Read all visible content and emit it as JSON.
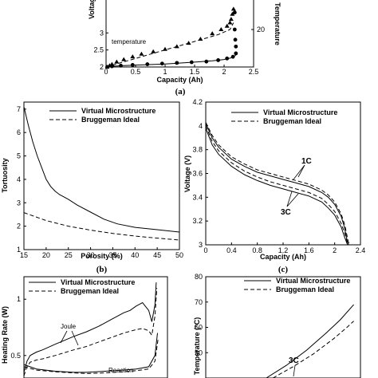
{
  "chart_data": [
    {
      "id": "a",
      "type": "line",
      "caption": "(a)",
      "xlabel": "Capacity (Ah)",
      "ylabel": "Voltage",
      "y2label": "Temperature",
      "xlim": [
        0,
        2.5
      ],
      "ylim": [
        2,
        4.2
      ],
      "y2lim": [
        0,
        40
      ],
      "xticks": [
        "0",
        "0.5",
        "1",
        "1.5",
        "2",
        "2.5"
      ],
      "yticks": [
        "2",
        "2.5",
        "3"
      ],
      "y2ticks": [
        "20"
      ],
      "annotation": "temperature",
      "series": [
        {
          "marker": "triangle",
          "x": [
            0.02,
            0.06,
            0.1,
            0.18,
            0.3,
            0.45,
            0.6,
            0.8,
            1.0,
            1.2,
            1.4,
            1.6,
            1.8,
            1.95,
            2.05,
            2.1,
            2.12,
            2.14,
            2.16
          ],
          "y": [
            2.0,
            2.04,
            2.08,
            2.15,
            2.22,
            2.3,
            2.38,
            2.45,
            2.52,
            2.6,
            2.7,
            2.82,
            2.98,
            3.1,
            3.2,
            3.3,
            3.4,
            3.55,
            3.7
          ]
        },
        {
          "marker": "circle",
          "x": [
            0.02,
            0.1,
            0.25,
            0.45,
            0.7,
            0.95,
            1.2,
            1.45,
            1.7,
            1.9,
            2.05,
            2.15,
            2.2,
            2.2,
            2.19,
            2.18,
            2.18
          ],
          "y": [
            2.0,
            2.02,
            2.04,
            2.06,
            2.08,
            2.1,
            2.12,
            2.14,
            2.16,
            2.2,
            2.25,
            2.3,
            2.4,
            2.6,
            2.8,
            3.1,
            3.6
          ]
        },
        {
          "style": "solid",
          "x": [
            0.0,
            0.1,
            0.3,
            0.6,
            1.0,
            1.4,
            1.8,
            2.0,
            2.15,
            2.2
          ],
          "y": [
            2.0,
            2.02,
            2.04,
            2.06,
            2.09,
            2.13,
            2.18,
            2.22,
            2.28,
            2.35
          ]
        },
        {
          "style": "dashed",
          "x": [
            0.0,
            0.2,
            0.5,
            1.0,
            1.5,
            1.9,
            2.1,
            2.16
          ],
          "y": [
            2.0,
            2.1,
            2.25,
            2.5,
            2.75,
            2.95,
            3.1,
            3.3
          ]
        }
      ]
    },
    {
      "id": "b",
      "type": "line",
      "caption": "(b)",
      "xlabel": "Porosity (%)",
      "ylabel": "Tortuosity",
      "xlim": [
        15,
        50
      ],
      "ylim": [
        1,
        7.3
      ],
      "xticks": [
        "15",
        "20",
        "25",
        "30",
        "35",
        "40",
        "45",
        "50"
      ],
      "yticks": [
        "1",
        "2",
        "3",
        "4",
        "5",
        "6",
        "7"
      ],
      "legend": [
        "Virtual Microstructure",
        "Bruggeman Ideal"
      ],
      "series": [
        {
          "name": "Virtual Microstructure",
          "style": "solid",
          "x": [
            15,
            16,
            17,
            18,
            19,
            20,
            21,
            22,
            23,
            25,
            27,
            30,
            33,
            36,
            40,
            45,
            50
          ],
          "y": [
            7.1,
            6.3,
            5.6,
            5.0,
            4.5,
            4.0,
            3.7,
            3.5,
            3.35,
            3.15,
            2.9,
            2.6,
            2.3,
            2.1,
            1.95,
            1.85,
            1.75
          ]
        },
        {
          "name": "Bruggeman Ideal",
          "style": "dashed",
          "x": [
            15,
            20,
            25,
            30,
            35,
            40,
            45,
            50
          ],
          "y": [
            2.58,
            2.24,
            2.0,
            1.83,
            1.69,
            1.58,
            1.49,
            1.41
          ]
        }
      ]
    },
    {
      "id": "c",
      "type": "line",
      "caption": "(c)",
      "xlabel": "Capacity (Ah)",
      "ylabel": "Voltage (V)",
      "xlim": [
        0,
        2.4
      ],
      "ylim": [
        3,
        4.2
      ],
      "xticks": [
        "0",
        "0.4",
        "0.8",
        "1.2",
        "1.6",
        "2",
        "2.4"
      ],
      "yticks": [
        "3",
        "3.2",
        "3.4",
        "3.6",
        "3.8",
        "4",
        "4.2"
      ],
      "legend": [
        "Virtual Microstructure",
        "Bruggeman Ideal"
      ],
      "labels": [
        "1C",
        "3C"
      ],
      "series": [
        {
          "name": "1C Virtual Microstructure",
          "style": "solid",
          "x": [
            0,
            0.1,
            0.2,
            0.4,
            0.6,
            0.8,
            1.0,
            1.2,
            1.4,
            1.6,
            1.8,
            1.9,
            2.0,
            2.1,
            2.15,
            2.2,
            2.22
          ],
          "y": [
            4.02,
            3.9,
            3.82,
            3.72,
            3.66,
            3.61,
            3.58,
            3.55,
            3.52,
            3.49,
            3.44,
            3.4,
            3.34,
            3.24,
            3.15,
            3.02,
            3.0
          ]
        },
        {
          "name": "1C Bruggeman Ideal",
          "style": "dashed",
          "x": [
            0,
            0.1,
            0.2,
            0.4,
            0.6,
            0.8,
            1.0,
            1.2,
            1.4,
            1.6,
            1.8,
            1.9,
            2.0,
            2.1,
            2.16,
            2.21,
            2.23
          ],
          "y": [
            4.03,
            3.92,
            3.84,
            3.74,
            3.68,
            3.63,
            3.6,
            3.57,
            3.54,
            3.51,
            3.46,
            3.42,
            3.36,
            3.26,
            3.16,
            3.03,
            3.0
          ]
        },
        {
          "name": "3C Virtual Microstructure",
          "style": "solid",
          "x": [
            0,
            0.1,
            0.2,
            0.4,
            0.6,
            0.8,
            1.0,
            1.2,
            1.4,
            1.6,
            1.8,
            1.9,
            2.0,
            2.1,
            2.15,
            2.2,
            2.21
          ],
          "y": [
            3.98,
            3.84,
            3.76,
            3.66,
            3.59,
            3.54,
            3.5,
            3.47,
            3.44,
            3.41,
            3.36,
            3.31,
            3.25,
            3.15,
            3.07,
            3.0,
            3.0
          ]
        },
        {
          "name": "3C Bruggeman Ideal",
          "style": "dashed",
          "x": [
            0,
            0.1,
            0.2,
            0.4,
            0.6,
            0.8,
            1.0,
            1.2,
            1.4,
            1.6,
            1.8,
            1.9,
            2.0,
            2.1,
            2.16,
            2.2,
            2.22
          ],
          "y": [
            4.0,
            3.87,
            3.79,
            3.69,
            3.62,
            3.57,
            3.53,
            3.5,
            3.47,
            3.44,
            3.39,
            3.34,
            3.28,
            3.18,
            3.09,
            3.01,
            3.0
          ]
        }
      ]
    },
    {
      "id": "d",
      "type": "line",
      "xlabel": "",
      "ylabel": "Heating Rate (W)",
      "xlim": [
        0,
        2.3
      ],
      "ylim": [
        0.3,
        1.2
      ],
      "yticks": [
        "1",
        "0.5"
      ],
      "legend": [
        "Virtual Microstructure",
        "Bruggeman Ideal"
      ],
      "labels": [
        "Joule",
        "Reaction"
      ],
      "series": [
        {
          "name": "Joule Virtual Microstructure",
          "style": "solid",
          "x": [
            0,
            0.05,
            0.1,
            0.2,
            0.3,
            0.5,
            0.8,
            1.0,
            1.2,
            1.4,
            1.6,
            1.7,
            1.8,
            1.9,
            2.0,
            2.05,
            2.1,
            2.12
          ],
          "y": [
            0.35,
            0.45,
            0.5,
            0.53,
            0.55,
            0.6,
            0.67,
            0.71,
            0.76,
            0.82,
            0.88,
            0.9,
            0.94,
            0.97,
            0.9,
            0.8,
            0.95,
            1.15
          ]
        },
        {
          "name": "Joule Bruggeman Ideal",
          "style": "dashed",
          "x": [
            0,
            0.05,
            0.1,
            0.2,
            0.3,
            0.5,
            0.8,
            1.0,
            1.2,
            1.4,
            1.6,
            1.8,
            1.9,
            2.0,
            2.05,
            2.1,
            2.13
          ],
          "y": [
            0.32,
            0.4,
            0.44,
            0.46,
            0.47,
            0.5,
            0.55,
            0.58,
            0.62,
            0.66,
            0.7,
            0.73,
            0.74,
            0.72,
            0.68,
            0.85,
            1.1
          ]
        },
        {
          "name": "Reaction Virtual Microstructure",
          "style": "solid",
          "x": [
            0,
            0.2,
            0.5,
            0.8,
            1.0,
            1.3,
            1.6,
            1.8,
            2.0,
            2.1,
            2.14
          ],
          "y": [
            0.42,
            0.38,
            0.36,
            0.35,
            0.35,
            0.36,
            0.37,
            0.38,
            0.4,
            0.5,
            0.7
          ]
        },
        {
          "name": "Reaction Bruggeman Ideal",
          "style": "dashed",
          "x": [
            0,
            0.2,
            0.5,
            0.8,
            1.0,
            1.3,
            1.6,
            1.8,
            2.0,
            2.1,
            2.15
          ],
          "y": [
            0.4,
            0.37,
            0.355,
            0.345,
            0.34,
            0.345,
            0.355,
            0.365,
            0.38,
            0.45,
            0.65
          ]
        }
      ]
    },
    {
      "id": "e",
      "type": "line",
      "xlabel": "",
      "ylabel": "Temperature (°C)",
      "xlim": [
        0,
        2.3
      ],
      "ylim": [
        40,
        80
      ],
      "yticks": [
        "80",
        "70",
        "60",
        "50"
      ],
      "legend": [
        "Virtual Microstructure",
        "Bruggeman Ideal"
      ],
      "labels": [
        "3C"
      ],
      "series": [
        {
          "name": "3C Virtual Microstructure",
          "style": "solid",
          "x": [
            0.9,
            1.2,
            1.5,
            1.8,
            2.0,
            2.2
          ],
          "y": [
            40,
            45,
            51,
            58,
            63,
            69
          ]
        },
        {
          "name": "3C Bruggeman Ideal",
          "style": "dashed",
          "x": [
            1.0,
            1.3,
            1.6,
            1.9,
            2.1,
            2.2
          ],
          "y": [
            40,
            44.5,
            49.5,
            55.5,
            60,
            62.5
          ]
        }
      ]
    }
  ]
}
